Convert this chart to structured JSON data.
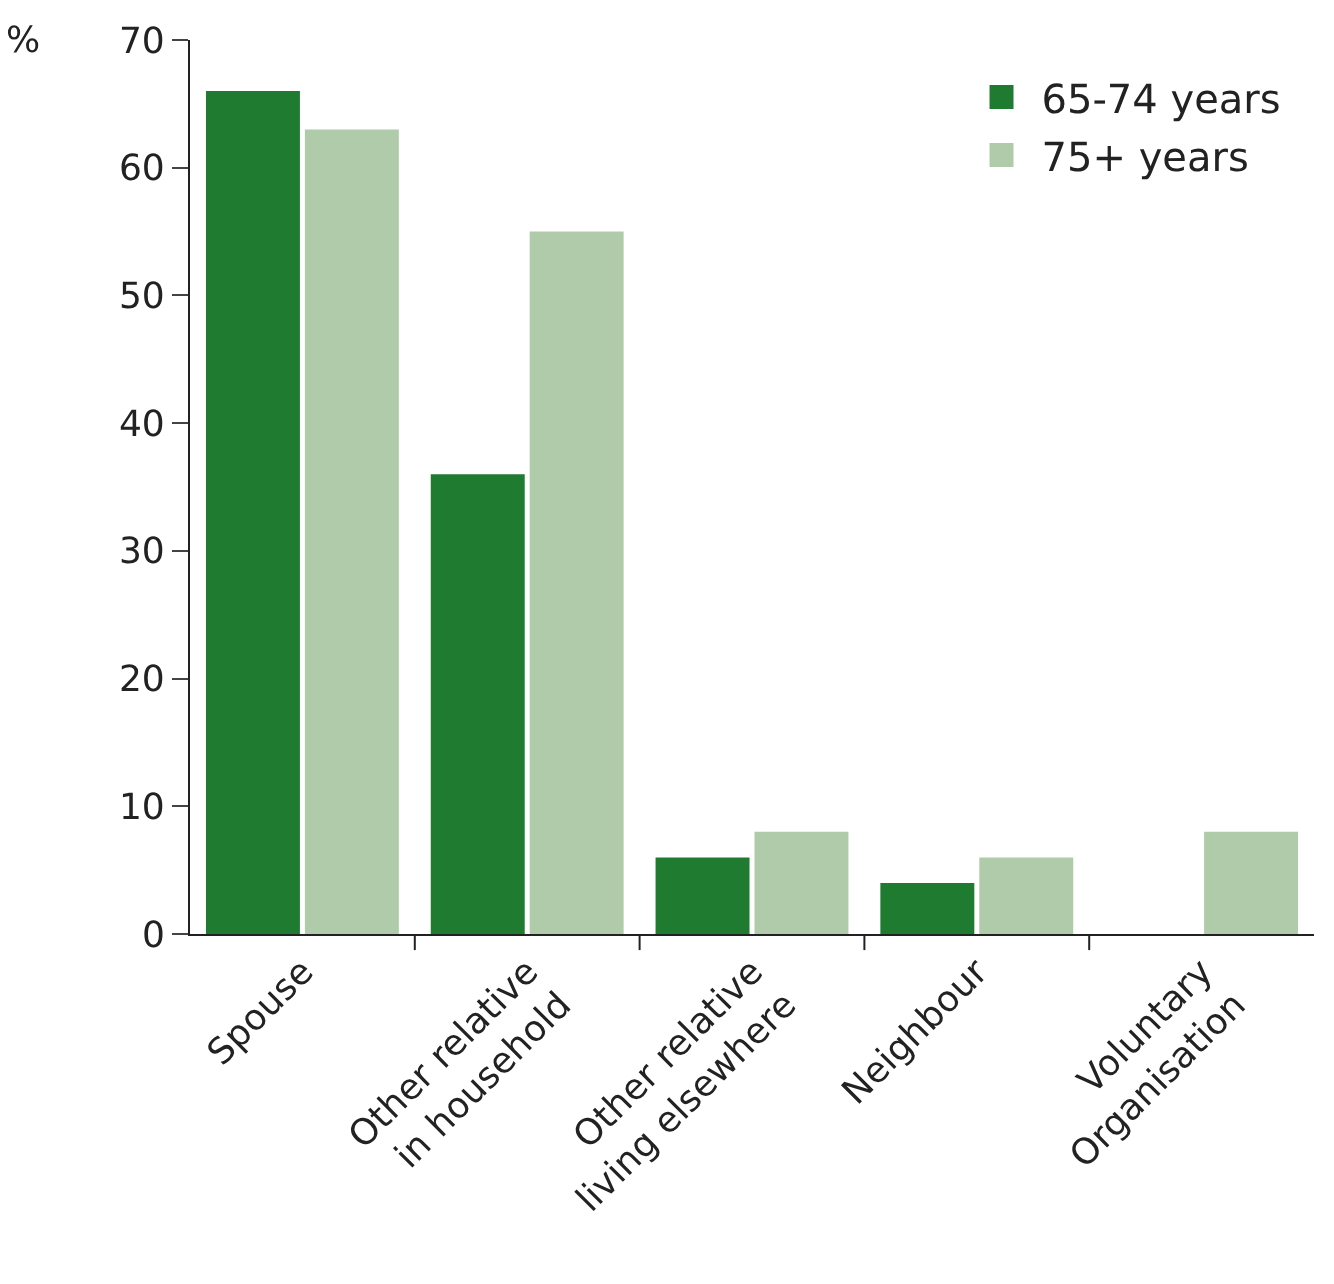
{
  "chart_data": {
    "type": "bar",
    "ylabel": "%",
    "categories": [
      "Spouse",
      "Other relative\nin household",
      "Other relative\nliving elsewhere",
      "Neighbour",
      "Voluntary\nOrganisation"
    ],
    "series": [
      {
        "name": "65-74 years",
        "color": "#1e7b30",
        "values": [
          66,
          36,
          6,
          4,
          0
        ]
      },
      {
        "name": "75+ years",
        "color": "#b0cbaa",
        "values": [
          63,
          55,
          8,
          6,
          8
        ]
      }
    ],
    "ylim": [
      0,
      70
    ],
    "yticks": [
      0,
      10,
      20,
      30,
      40,
      50,
      60,
      70
    ],
    "legend": "top right"
  }
}
